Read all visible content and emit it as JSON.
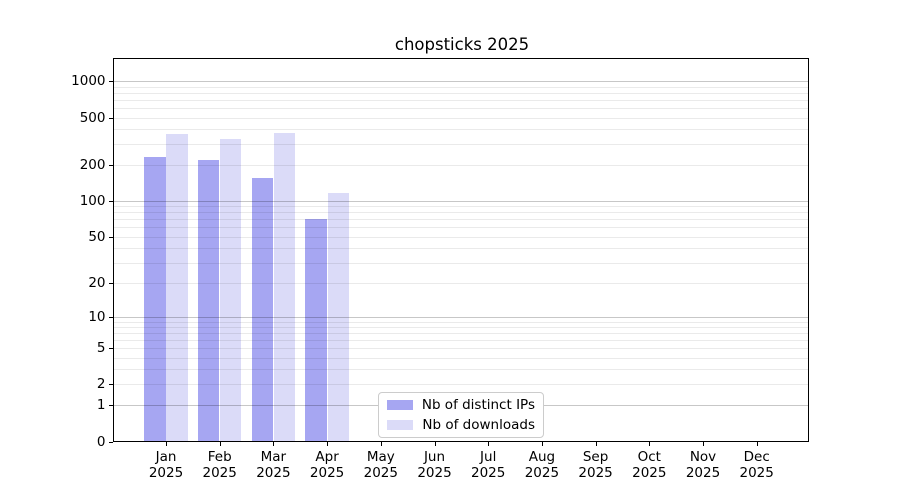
{
  "page": {
    "background": "#ffffff"
  },
  "chart_data": {
    "type": "bar",
    "title": "chopsticks 2025",
    "y_scale": "log1p",
    "ylim": [
      0,
      1570
    ],
    "grid": "on",
    "legend_position": "lower center",
    "categories": [
      "Jan 2025",
      "Feb 2025",
      "Mar 2025",
      "Apr 2025",
      "May 2025",
      "Jun 2025",
      "Jul 2025",
      "Aug 2025",
      "Sep 2025",
      "Oct 2025",
      "Nov 2025",
      "Dec 2025"
    ],
    "yticks": [
      0,
      1,
      2,
      5,
      10,
      20,
      50,
      100,
      200,
      500,
      1000
    ],
    "series": [
      {
        "name": "Nb of distinct IPs",
        "color": "#a6a6f2",
        "values": [
          234,
          220,
          155,
          70,
          0,
          0,
          0,
          0,
          0,
          0,
          0,
          0
        ]
      },
      {
        "name": "Nb of downloads",
        "color": "#dbdbf8",
        "values": [
          363,
          333,
          372,
          117,
          0,
          0,
          0,
          0,
          0,
          0,
          0,
          0
        ]
      }
    ],
    "colors": {
      "grid_major": "rgba(0,0,0,0.22)",
      "grid_minor": "rgba(0,0,0,0.082)",
      "axis": "#000000",
      "text": "#000000"
    }
  }
}
